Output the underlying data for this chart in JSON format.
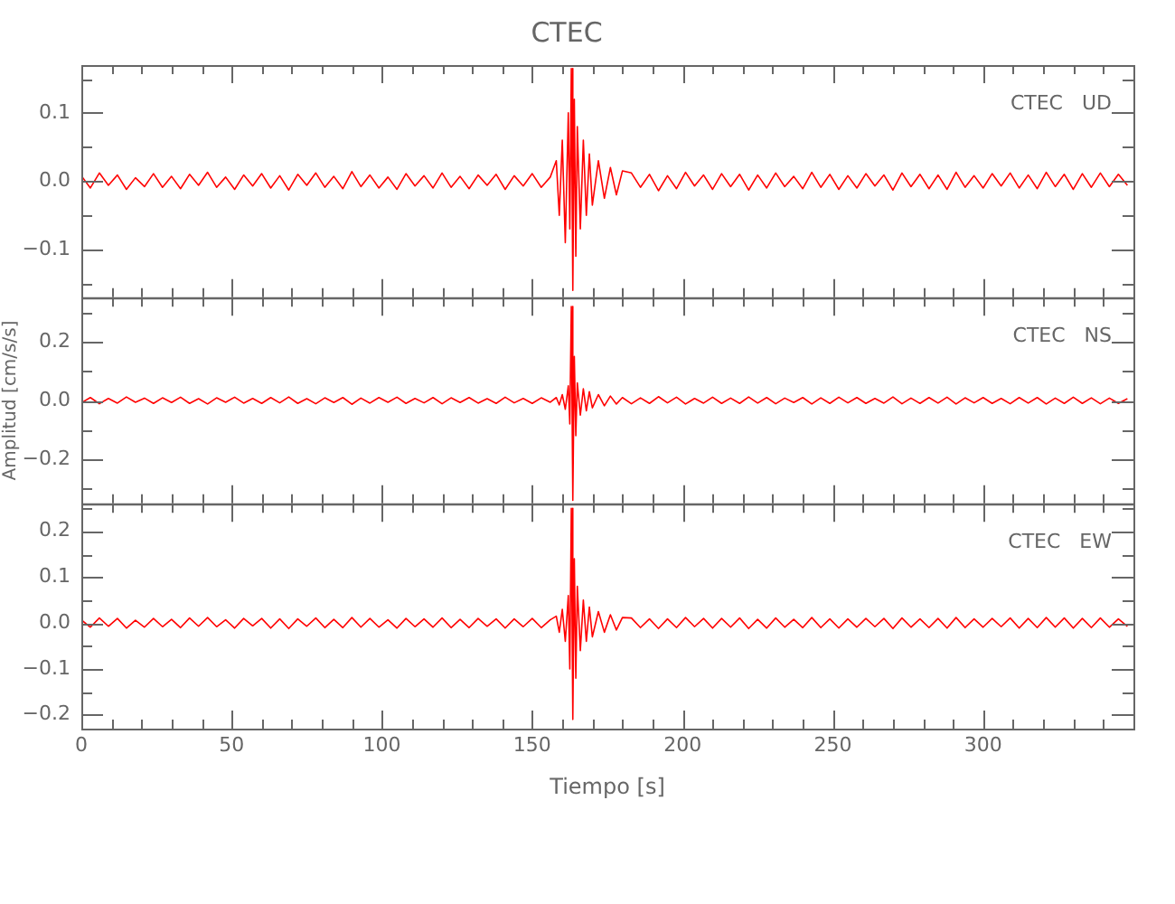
{
  "chart_data": [
    {
      "type": "line",
      "title": "CTEC",
      "annotations": [
        "CTEC   UD"
      ],
      "tick_labels": "y",
      "grid": false,
      "legend": false,
      "xlim": [
        0,
        350
      ],
      "xticks": [
        0,
        {
          "value": 10,
          "label": null
        },
        {
          "value": 20,
          "label": null
        },
        {
          "value": 30,
          "label": null
        },
        {
          "value": 40,
          "label": null
        },
        50,
        {
          "value": 60,
          "label": null
        },
        {
          "value": 70,
          "label": null
        },
        {
          "value": 80,
          "label": null
        },
        {
          "value": 90,
          "label": null
        },
        100,
        {
          "value": 110,
          "label": null
        },
        {
          "value": 120,
          "label": null
        },
        {
          "value": 130,
          "label": null
        },
        {
          "value": 140,
          "label": null
        },
        150,
        {
          "value": 160,
          "label": null
        },
        {
          "value": 170,
          "label": null
        },
        {
          "value": 180,
          "label": null
        },
        {
          "value": 190,
          "label": null
        },
        200,
        {
          "value": 210,
          "label": null
        },
        {
          "value": 220,
          "label": null
        },
        {
          "value": 230,
          "label": null
        },
        {
          "value": 240,
          "label": null
        },
        250,
        {
          "value": 260,
          "label": null
        },
        {
          "value": 270,
          "label": null
        },
        {
          "value": 280,
          "label": null
        },
        {
          "value": 290,
          "label": null
        },
        300,
        {
          "value": 310,
          "label": null
        },
        {
          "value": 320,
          "label": null
        },
        {
          "value": 330,
          "label": null
        },
        {
          "value": 340,
          "label": null
        }
      ],
      "ylim": [
        -0.17,
        0.17
      ],
      "yticks": [
        {
          "value": -0.15,
          "label": null
        },
        {
          "value": -0.1,
          "label": "−0.1"
        },
        {
          "value": -0.05,
          "label": null
        },
        {
          "value": 0,
          "label": "0.0"
        },
        {
          "value": 0.05,
          "label": null
        },
        {
          "value": 0.1,
          "label": "0.1"
        },
        {
          "value": 0.15,
          "label": null
        }
      ],
      "x": [
        0,
        3,
        6,
        9,
        12,
        15,
        18,
        21,
        24,
        27,
        30,
        33,
        36,
        39,
        42,
        45,
        48,
        51,
        54,
        57,
        60,
        63,
        66,
        69,
        72,
        75,
        78,
        81,
        84,
        87,
        90,
        93,
        96,
        99,
        102,
        105,
        108,
        111,
        114,
        117,
        120,
        123,
        126,
        129,
        132,
        135,
        138,
        141,
        144,
        147,
        150,
        153,
        156,
        158,
        159,
        160,
        161,
        162,
        162.5,
        163,
        163.5,
        164,
        164.5,
        165,
        166,
        167,
        168,
        169,
        170,
        172,
        174,
        176,
        178,
        180,
        183,
        186,
        189,
        192,
        195,
        198,
        201,
        204,
        207,
        210,
        213,
        216,
        219,
        222,
        225,
        228,
        231,
        234,
        237,
        240,
        243,
        246,
        249,
        252,
        255,
        258,
        261,
        264,
        267,
        270,
        273,
        276,
        279,
        282,
        285,
        288,
        291,
        294,
        297,
        300,
        303,
        306,
        309,
        312,
        315,
        318,
        321,
        324,
        327,
        330,
        333,
        336,
        339,
        342,
        345,
        348
      ],
      "series": [
        {
          "color": "#ff0000",
          "values": [
            0.008,
            -0.01,
            0.012,
            -0.006,
            0.009,
            -0.012,
            0.005,
            -0.008,
            0.011,
            -0.009,
            0.007,
            -0.011,
            0.01,
            -0.006,
            0.013,
            -0.009,
            0.006,
            -0.012,
            0.009,
            -0.007,
            0.011,
            -0.01,
            0.008,
            -0.013,
            0.01,
            -0.006,
            0.012,
            -0.009,
            0.007,
            -0.011,
            0.014,
            -0.008,
            0.009,
            -0.01,
            0.006,
            -0.012,
            0.011,
            -0.007,
            0.008,
            -0.01,
            0.012,
            -0.009,
            0.007,
            -0.011,
            0.009,
            -0.006,
            0.01,
            -0.012,
            0.008,
            -0.007,
            0.011,
            -0.009,
            0.006,
            0.03,
            -0.05,
            0.06,
            -0.09,
            0.1,
            -0.07,
            0.165,
            -0.16,
            0.12,
            -0.11,
            0.08,
            -0.07,
            0.06,
            -0.05,
            0.04,
            -0.035,
            0.03,
            -0.025,
            0.02,
            -0.02,
            0.015,
            0.012,
            -0.009,
            0.01,
            -0.014,
            0.008,
            -0.011,
            0.013,
            -0.007,
            0.009,
            -0.012,
            0.011,
            -0.008,
            0.01,
            -0.013,
            0.009,
            -0.01,
            0.012,
            -0.008,
            0.007,
            -0.011,
            0.013,
            -0.009,
            0.01,
            -0.012,
            0.008,
            -0.01,
            0.011,
            -0.007,
            0.009,
            -0.013,
            0.012,
            -0.008,
            0.01,
            -0.011,
            0.009,
            -0.012,
            0.013,
            -0.009,
            0.008,
            -0.01,
            0.011,
            -0.007,
            0.012,
            -0.01,
            0.009,
            -0.011,
            0.013,
            -0.008,
            0.01,
            -0.012,
            0.011,
            -0.009,
            0.012,
            -0.008,
            0.01,
            -0.006
          ]
        }
      ]
    },
    {
      "type": "line",
      "ylabel": "Amplitud [cm/s/s]",
      "annotations": [
        "CTEC   NS"
      ],
      "tick_labels": "y",
      "grid": false,
      "legend": false,
      "xlim": [
        0,
        350
      ],
      "xticks": [
        0,
        {
          "value": 10,
          "label": null
        },
        {
          "value": 20,
          "label": null
        },
        {
          "value": 30,
          "label": null
        },
        {
          "value": 40,
          "label": null
        },
        50,
        {
          "value": 60,
          "label": null
        },
        {
          "value": 70,
          "label": null
        },
        {
          "value": 80,
          "label": null
        },
        {
          "value": 90,
          "label": null
        },
        100,
        {
          "value": 110,
          "label": null
        },
        {
          "value": 120,
          "label": null
        },
        {
          "value": 130,
          "label": null
        },
        {
          "value": 140,
          "label": null
        },
        150,
        {
          "value": 160,
          "label": null
        },
        {
          "value": 170,
          "label": null
        },
        {
          "value": 180,
          "label": null
        },
        {
          "value": 190,
          "label": null
        },
        200,
        {
          "value": 210,
          "label": null
        },
        {
          "value": 220,
          "label": null
        },
        {
          "value": 230,
          "label": null
        },
        {
          "value": 240,
          "label": null
        },
        250,
        {
          "value": 260,
          "label": null
        },
        {
          "value": 270,
          "label": null
        },
        {
          "value": 280,
          "label": null
        },
        {
          "value": 290,
          "label": null
        },
        300,
        {
          "value": 310,
          "label": null
        },
        {
          "value": 320,
          "label": null
        },
        {
          "value": 330,
          "label": null
        },
        {
          "value": 340,
          "label": null
        }
      ],
      "ylim": [
        -0.35,
        0.35
      ],
      "yticks": [
        {
          "value": -0.3,
          "label": null
        },
        {
          "value": -0.2,
          "label": "−0.2"
        },
        {
          "value": -0.1,
          "label": null
        },
        {
          "value": 0,
          "label": "0.0"
        },
        {
          "value": 0.1,
          "label": null
        },
        {
          "value": 0.2,
          "label": "0.2"
        },
        {
          "value": 0.3,
          "label": null
        }
      ],
      "x": [
        0,
        3,
        6,
        9,
        12,
        15,
        18,
        21,
        24,
        27,
        30,
        33,
        36,
        39,
        42,
        45,
        48,
        51,
        54,
        57,
        60,
        63,
        66,
        69,
        72,
        75,
        78,
        81,
        84,
        87,
        90,
        93,
        96,
        99,
        102,
        105,
        108,
        111,
        114,
        117,
        120,
        123,
        126,
        129,
        132,
        135,
        138,
        141,
        144,
        147,
        150,
        153,
        156,
        158,
        159,
        160,
        161,
        162,
        162.5,
        163,
        163.5,
        164,
        164.5,
        165,
        166,
        167,
        168,
        169,
        170,
        172,
        174,
        176,
        178,
        180,
        183,
        186,
        189,
        192,
        195,
        198,
        201,
        204,
        207,
        210,
        213,
        216,
        219,
        222,
        225,
        228,
        231,
        234,
        237,
        240,
        243,
        246,
        249,
        252,
        255,
        258,
        261,
        264,
        267,
        270,
        273,
        276,
        279,
        282,
        285,
        288,
        291,
        294,
        297,
        300,
        303,
        306,
        309,
        312,
        315,
        318,
        321,
        324,
        327,
        330,
        333,
        336,
        339,
        342,
        345,
        348
      ],
      "series": [
        {
          "color": "#ff0000",
          "values": [
            -0.008,
            0.01,
            -0.011,
            0.007,
            -0.009,
            0.012,
            -0.006,
            0.008,
            -0.01,
            0.009,
            -0.007,
            0.011,
            -0.01,
            0.006,
            -0.012,
            0.009,
            -0.006,
            0.011,
            -0.009,
            0.007,
            -0.01,
            0.01,
            -0.008,
            0.012,
            -0.01,
            0.006,
            -0.011,
            0.009,
            -0.007,
            0.01,
            -0.013,
            0.008,
            -0.009,
            0.01,
            -0.006,
            0.011,
            -0.01,
            0.007,
            -0.008,
            0.01,
            -0.011,
            0.009,
            -0.007,
            0.01,
            -0.009,
            0.006,
            -0.01,
            0.011,
            -0.008,
            0.007,
            -0.01,
            0.009,
            -0.006,
            0.01,
            -0.015,
            0.02,
            -0.03,
            0.05,
            -0.08,
            0.32,
            -0.34,
            0.15,
            -0.12,
            0.06,
            -0.05,
            0.04,
            -0.035,
            0.03,
            -0.025,
            0.02,
            -0.018,
            0.015,
            -0.012,
            0.01,
            -0.011,
            0.009,
            -0.01,
            0.013,
            -0.008,
            0.011,
            -0.012,
            0.007,
            -0.009,
            0.011,
            -0.01,
            0.008,
            -0.01,
            0.012,
            -0.009,
            0.01,
            -0.011,
            0.008,
            -0.007,
            0.01,
            -0.012,
            0.009,
            -0.01,
            0.011,
            -0.008,
            0.01,
            -0.01,
            0.007,
            -0.009,
            0.012,
            -0.011,
            0.008,
            -0.01,
            0.01,
            -0.009,
            0.011,
            -0.012,
            0.009,
            -0.008,
            0.01,
            -0.01,
            0.007,
            -0.011,
            0.01,
            -0.009,
            0.01,
            -0.012,
            0.008,
            -0.01,
            0.011,
            -0.01,
            0.009,
            -0.011,
            0.008,
            -0.01,
            0.006
          ]
        }
      ]
    },
    {
      "type": "line",
      "xlabel": "Tiempo [s]",
      "annotations": [
        "CTEC   EW"
      ],
      "grid": false,
      "legend": false,
      "xlim": [
        0,
        350
      ],
      "xticks": [
        0,
        {
          "value": 10,
          "label": null
        },
        {
          "value": 20,
          "label": null
        },
        {
          "value": 30,
          "label": null
        },
        {
          "value": 40,
          "label": null
        },
        50,
        {
          "value": 60,
          "label": null
        },
        {
          "value": 70,
          "label": null
        },
        {
          "value": 80,
          "label": null
        },
        {
          "value": 90,
          "label": null
        },
        100,
        {
          "value": 110,
          "label": null
        },
        {
          "value": 120,
          "label": null
        },
        {
          "value": 130,
          "label": null
        },
        {
          "value": 140,
          "label": null
        },
        150,
        {
          "value": 160,
          "label": null
        },
        {
          "value": 170,
          "label": null
        },
        {
          "value": 180,
          "label": null
        },
        {
          "value": 190,
          "label": null
        },
        200,
        {
          "value": 210,
          "label": null
        },
        {
          "value": 220,
          "label": null
        },
        {
          "value": 230,
          "label": null
        },
        {
          "value": 240,
          "label": null
        },
        250,
        {
          "value": 260,
          "label": null
        },
        {
          "value": 270,
          "label": null
        },
        {
          "value": 280,
          "label": null
        },
        {
          "value": 290,
          "label": null
        },
        300,
        {
          "value": 310,
          "label": null
        },
        {
          "value": 320,
          "label": null
        },
        {
          "value": 330,
          "label": null
        },
        {
          "value": 340,
          "label": null
        }
      ],
      "ylim": [
        -0.23,
        0.26
      ],
      "yticks": [
        {
          "value": -0.2,
          "label": "−0.2"
        },
        {
          "value": -0.15,
          "label": null
        },
        {
          "value": -0.1,
          "label": "−0.1"
        },
        {
          "value": -0.05,
          "label": null
        },
        {
          "value": 0,
          "label": "0.0"
        },
        {
          "value": 0.05,
          "label": null
        },
        {
          "value": 0.1,
          "label": "0.1"
        },
        {
          "value": 0.15,
          "label": null
        },
        {
          "value": 0.2,
          "label": "0.2"
        },
        {
          "value": 0.25,
          "label": null
        }
      ],
      "x": [
        0,
        3,
        6,
        9,
        12,
        15,
        18,
        21,
        24,
        27,
        30,
        33,
        36,
        39,
        42,
        45,
        48,
        51,
        54,
        57,
        60,
        63,
        66,
        69,
        72,
        75,
        78,
        81,
        84,
        87,
        90,
        93,
        96,
        99,
        102,
        105,
        108,
        111,
        114,
        117,
        120,
        123,
        126,
        129,
        132,
        135,
        138,
        141,
        144,
        147,
        150,
        153,
        156,
        158,
        159,
        160,
        161,
        162,
        162.5,
        163,
        163.5,
        164,
        164.5,
        165,
        166,
        167,
        168,
        169,
        170,
        172,
        174,
        176,
        178,
        180,
        183,
        186,
        189,
        192,
        195,
        198,
        201,
        204,
        207,
        210,
        213,
        216,
        219,
        222,
        225,
        228,
        231,
        234,
        237,
        240,
        243,
        246,
        249,
        252,
        255,
        258,
        261,
        264,
        267,
        270,
        273,
        276,
        279,
        282,
        285,
        288,
        291,
        294,
        297,
        300,
        303,
        306,
        309,
        312,
        315,
        318,
        321,
        324,
        327,
        330,
        333,
        336,
        339,
        342,
        345,
        348
      ],
      "series": [
        {
          "color": "#ff0000",
          "values": [
            0.007,
            -0.009,
            0.011,
            -0.007,
            0.01,
            -0.011,
            0.006,
            -0.009,
            0.01,
            -0.008,
            0.008,
            -0.01,
            0.011,
            -0.007,
            0.012,
            -0.008,
            0.007,
            -0.011,
            0.01,
            -0.006,
            0.01,
            -0.011,
            0.009,
            -0.012,
            0.009,
            -0.007,
            0.011,
            -0.01,
            0.008,
            -0.01,
            0.012,
            -0.009,
            0.01,
            -0.009,
            0.007,
            -0.011,
            0.01,
            -0.008,
            0.009,
            -0.009,
            0.011,
            -0.01,
            0.008,
            -0.01,
            0.01,
            -0.007,
            0.009,
            -0.011,
            0.009,
            -0.008,
            0.01,
            -0.01,
            0.007,
            0.015,
            -0.02,
            0.03,
            -0.04,
            0.06,
            -0.1,
            0.25,
            -0.21,
            0.14,
            -0.12,
            0.08,
            -0.06,
            0.05,
            -0.04,
            0.035,
            -0.03,
            0.025,
            -0.02,
            0.018,
            -0.015,
            0.012,
            0.011,
            -0.01,
            0.009,
            -0.012,
            0.009,
            -0.01,
            0.012,
            -0.008,
            0.01,
            -0.011,
            0.01,
            -0.009,
            0.011,
            -0.012,
            0.008,
            -0.011,
            0.011,
            -0.009,
            0.008,
            -0.01,
            0.012,
            -0.01,
            0.009,
            -0.011,
            0.009,
            -0.009,
            0.01,
            -0.008,
            0.01,
            -0.012,
            0.011,
            -0.009,
            0.009,
            -0.01,
            0.01,
            -0.011,
            0.012,
            -0.01,
            0.009,
            -0.009,
            0.01,
            -0.008,
            0.011,
            -0.011,
            0.01,
            -0.01,
            0.012,
            -0.009,
            0.011,
            -0.011,
            0.01,
            -0.01,
            0.011,
            -0.009,
            0.009,
            -0.007
          ]
        }
      ]
    }
  ]
}
